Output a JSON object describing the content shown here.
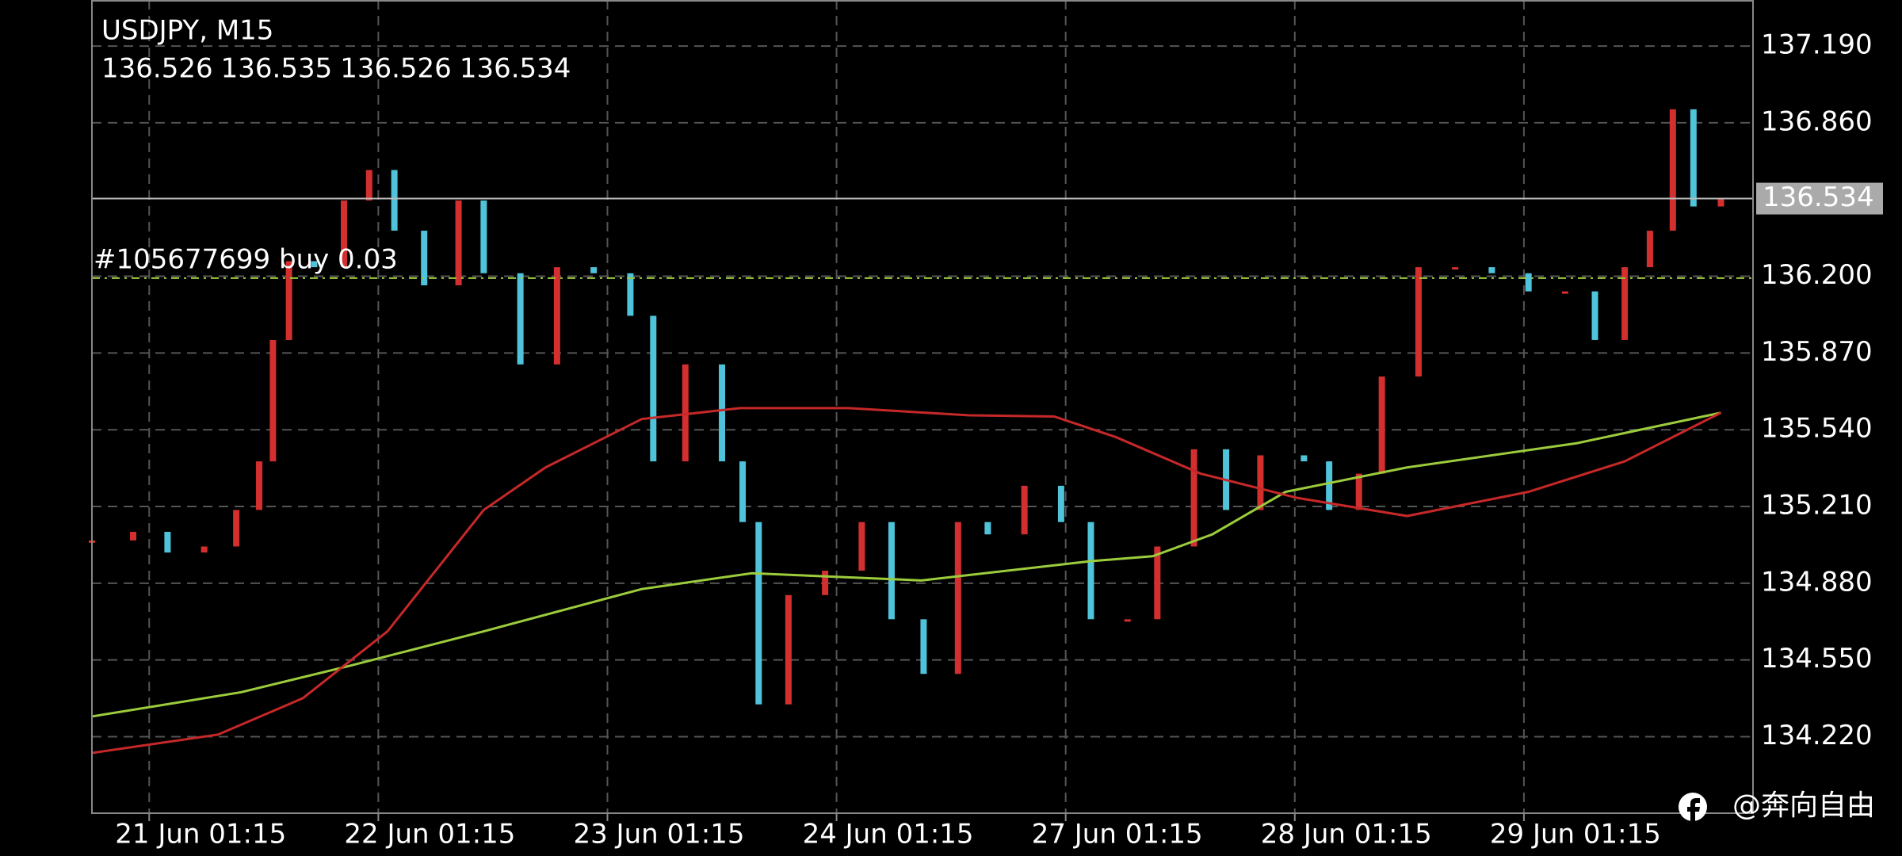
{
  "chart_data": {
    "type": "price-chart",
    "title": "USDJPY, M15",
    "ohlc": [
      136.526,
      136.535,
      136.526,
      136.534
    ],
    "xlim": [
      0.75,
      8.0
    ],
    "xticks": [
      {
        "value": 1,
        "label": "21 Jun 01:15"
      },
      {
        "value": 2,
        "label": "22 Jun 01:15"
      },
      {
        "value": 3,
        "label": "23 Jun 01:15"
      },
      {
        "value": 4,
        "label": "24 Jun 01:15"
      },
      {
        "value": 5,
        "label": "27 Jun 01:15"
      },
      {
        "value": 6,
        "label": "28 Jun 01:15"
      },
      {
        "value": 7,
        "label": "29 Jun 01:15"
      }
    ],
    "ylim": [
      133.891,
      137.388
    ],
    "yticks": [
      {
        "value": 137.19,
        "label": "137.190"
      },
      {
        "value": 136.86,
        "label": "136.860"
      },
      {
        "value": 136.2,
        "label": "136.200"
      },
      {
        "value": 135.87,
        "label": "135.870"
      },
      {
        "value": 135.54,
        "label": "135.540"
      },
      {
        "value": 135.21,
        "label": "135.210"
      },
      {
        "value": 134.88,
        "label": "134.880"
      },
      {
        "value": 134.55,
        "label": "134.550"
      },
      {
        "value": 134.22,
        "label": "134.220"
      }
    ],
    "grid": true,
    "current_price": 136.534,
    "order": {
      "label": "#105677699 buy  0.03",
      "price": 136.192
    },
    "watermark": "@奔向自由",
    "price": {
      "up_color": "#d32f2f",
      "down_color": "#4fc3d9",
      "x": [
        0.75,
        0.93,
        1.08,
        1.24,
        1.38,
        1.48,
        1.54,
        1.61,
        1.72,
        1.85,
        1.96,
        2.07,
        2.2,
        2.35,
        2.46,
        2.62,
        2.78,
        2.94,
        3.1,
        3.2,
        3.34,
        3.5,
        3.59,
        3.66,
        3.79,
        3.95,
        4.11,
        4.24,
        4.38,
        4.53,
        4.66,
        4.82,
        4.98,
        5.11,
        5.27,
        5.4,
        5.56,
        5.7,
        5.85,
        6.04,
        6.15,
        6.28,
        6.38,
        6.54,
        6.7,
        6.86,
        7.02,
        7.18,
        7.31,
        7.44,
        7.55,
        7.65,
        7.74,
        7.86
      ],
      "values": [
        135.064,
        135.101,
        135.012,
        135.038,
        135.195,
        135.404,
        135.926,
        136.265,
        136.239,
        136.526,
        136.657,
        136.396,
        136.161,
        136.526,
        136.213,
        135.821,
        136.239,
        136.213,
        136.03,
        135.404,
        135.821,
        135.404,
        135.143,
        134.359,
        134.829,
        134.934,
        135.143,
        134.725,
        134.49,
        135.143,
        135.09,
        135.299,
        135.143,
        134.725,
        134.725,
        135.038,
        135.456,
        135.195,
        135.43,
        135.404,
        135.195,
        135.351,
        135.769,
        136.239,
        136.239,
        136.213,
        136.135,
        136.135,
        135.926,
        136.239,
        136.396,
        136.918,
        136.5,
        136.534
      ]
    },
    "series": [
      {
        "color": "#9ccc3c",
        "x": [
          0.75,
          1.4,
          1.88,
          2.46,
          3.15,
          3.63,
          4.37,
          5.11,
          5.38,
          5.64,
          5.96,
          6.49,
          7.23,
          7.86
        ],
        "values": [
          134.307,
          134.411,
          134.526,
          134.673,
          134.855,
          134.923,
          134.892,
          134.975,
          134.996,
          135.09,
          135.273,
          135.378,
          135.482,
          135.613
        ]
      },
      {
        "color": "#c62828",
        "x": [
          0.75,
          1.3,
          1.67,
          2.04,
          2.46,
          2.73,
          3.15,
          3.58,
          4.05,
          4.58,
          4.95,
          5.22,
          5.59,
          6.01,
          6.49,
          7.02,
          7.44,
          7.86
        ],
        "values": [
          134.15,
          134.229,
          134.385,
          134.673,
          135.195,
          135.378,
          135.586,
          135.633,
          135.633,
          135.602,
          135.597,
          135.508,
          135.351,
          135.247,
          135.169,
          135.273,
          135.404,
          135.613
        ]
      }
    ]
  }
}
